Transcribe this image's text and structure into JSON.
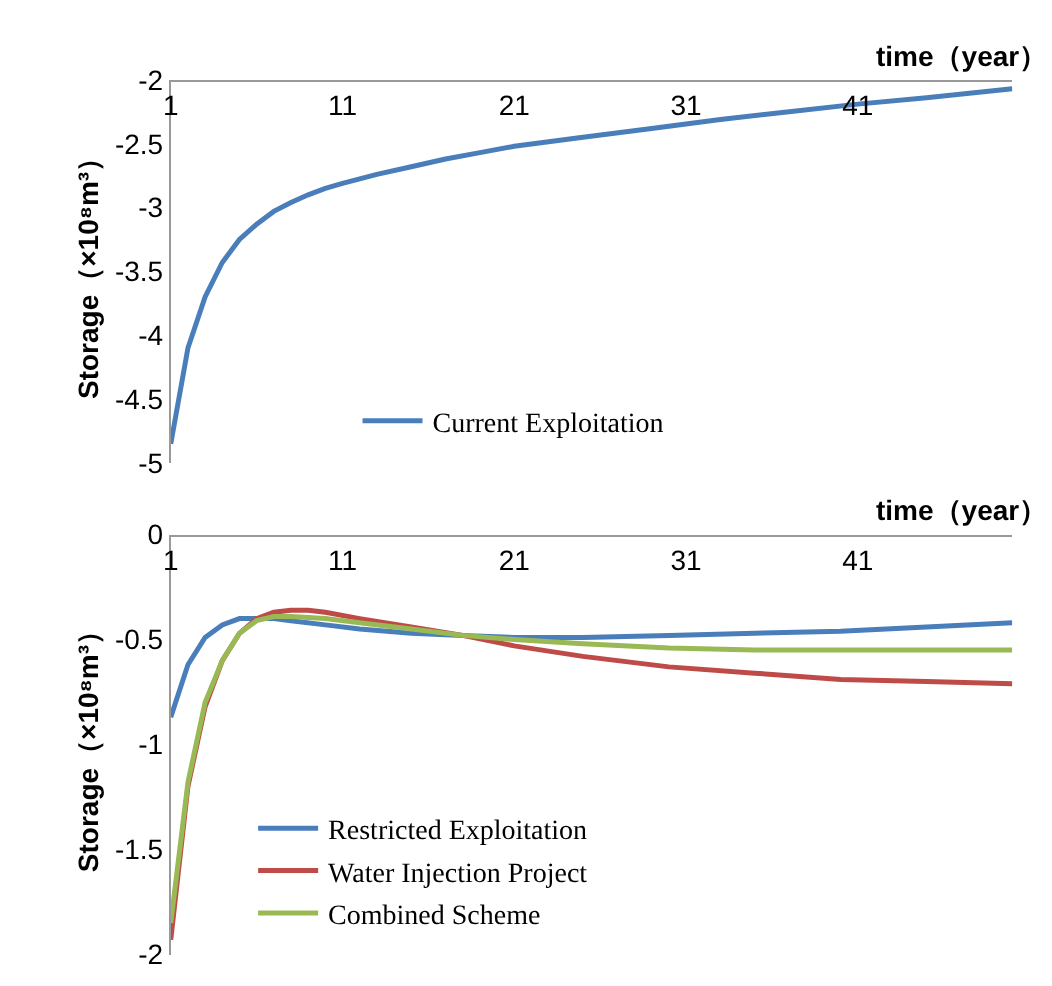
{
  "chart_data": [
    {
      "type": "line",
      "xlabel": "time（year）",
      "ylabel": "Storage（×10⁸m³）",
      "xlim": [
        1,
        50
      ],
      "xticks": [
        1,
        11,
        21,
        31,
        41
      ],
      "ylim": [
        -5,
        -2
      ],
      "yticks": [
        -5,
        -4.5,
        -4,
        -3.5,
        -3,
        -2.5,
        -2
      ],
      "legend": "bottom",
      "marker": "none",
      "line_style": "solid",
      "series": [
        {
          "name": "Current Exploitation",
          "color": "#4a7ebb",
          "x": [
            1,
            2,
            3,
            4,
            5,
            6,
            7,
            8,
            9,
            10,
            11,
            13,
            15,
            17,
            19,
            21,
            25,
            29,
            33,
            37,
            41,
            45,
            50
          ],
          "values": [
            -4.85,
            -4.1,
            -3.7,
            -3.43,
            -3.25,
            -3.13,
            -3.03,
            -2.96,
            -2.9,
            -2.85,
            -2.81,
            -2.74,
            -2.68,
            -2.62,
            -2.57,
            -2.52,
            -2.45,
            -2.38,
            -2.31,
            -2.25,
            -2.19,
            -2.14,
            -2.07
          ]
        }
      ]
    },
    {
      "type": "line",
      "xlabel": "time（year）",
      "ylabel": "Storage（×10⁸m³）",
      "xlim": [
        1,
        50
      ],
      "xticks": [
        1,
        11,
        21,
        31,
        41
      ],
      "ylim": [
        -2,
        0
      ],
      "yticks": [
        -2,
        -1.5,
        -1,
        -0.5,
        0
      ],
      "legend": "bottom",
      "marker": "none",
      "line_style": "solid",
      "series": [
        {
          "name": "Restricted Exploitation",
          "color": "#4a7ebb",
          "x": [
            1,
            2,
            3,
            4,
            5,
            6,
            7,
            8,
            10,
            12,
            15,
            18,
            21,
            25,
            30,
            35,
            40,
            45,
            50
          ],
          "values": [
            -0.87,
            -0.62,
            -0.49,
            -0.43,
            -0.4,
            -0.4,
            -0.4,
            -0.41,
            -0.43,
            -0.45,
            -0.47,
            -0.48,
            -0.49,
            -0.49,
            -0.48,
            -0.47,
            -0.46,
            -0.44,
            -0.42
          ]
        },
        {
          "name": "Water Injection Project",
          "color": "#be4b48",
          "x": [
            1,
            2,
            3,
            4,
            5,
            6,
            7,
            8,
            9,
            10,
            12,
            15,
            18,
            21,
            25,
            30,
            35,
            40,
            45,
            50
          ],
          "values": [
            -1.93,
            -1.2,
            -0.82,
            -0.6,
            -0.47,
            -0.4,
            -0.37,
            -0.36,
            -0.36,
            -0.37,
            -0.4,
            -0.44,
            -0.48,
            -0.53,
            -0.58,
            -0.63,
            -0.66,
            -0.69,
            -0.7,
            -0.71
          ]
        },
        {
          "name": "Combined Scheme",
          "color": "#98b954",
          "x": [
            1,
            2,
            3,
            4,
            5,
            6,
            7,
            8,
            10,
            12,
            15,
            18,
            21,
            25,
            30,
            35,
            40,
            50
          ],
          "values": [
            -1.85,
            -1.18,
            -0.8,
            -0.6,
            -0.47,
            -0.41,
            -0.39,
            -0.39,
            -0.4,
            -0.42,
            -0.45,
            -0.48,
            -0.5,
            -0.52,
            -0.54,
            -0.55,
            -0.55,
            -0.55
          ]
        }
      ]
    }
  ]
}
